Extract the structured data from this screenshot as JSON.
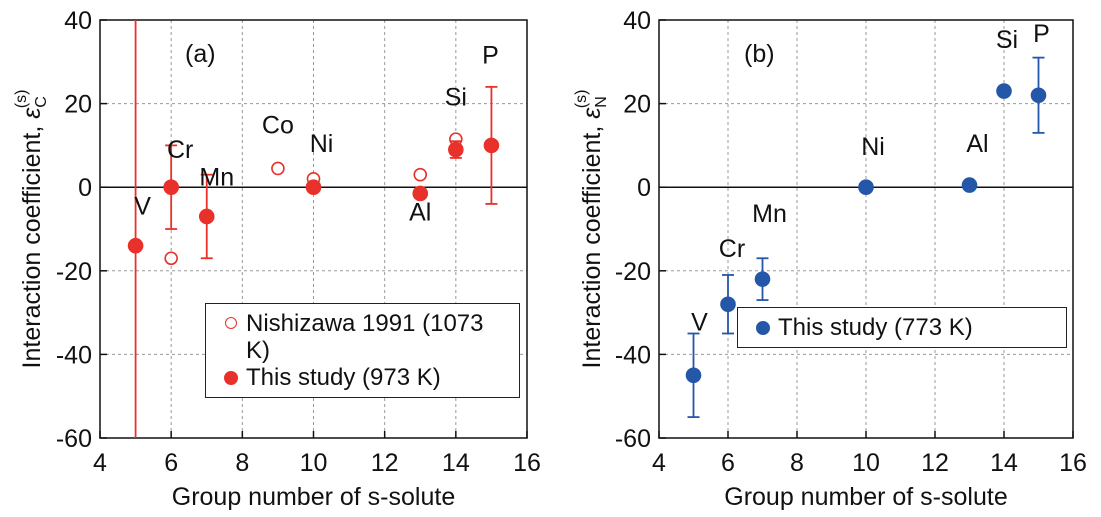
{
  "chart_data": [
    {
      "type": "scatter",
      "panel_label": "(a)",
      "xlabel": "Group number of s-solute",
      "ylabel": {
        "text": "Interaction coefficient, ",
        "symbol": "ε",
        "sub": "C",
        "sup": "(s)"
      },
      "xlim": [
        4,
        16
      ],
      "xticks": [
        4,
        6,
        8,
        10,
        12,
        14,
        16
      ],
      "ylim": [
        -60,
        40
      ],
      "yticks": [
        -60,
        -40,
        -20,
        0,
        20,
        40
      ],
      "grid": true,
      "legend": "lower right",
      "series": [
        {
          "name": "Nishizawa 1991 (1073 K)",
          "marker": "open",
          "color": "#e8312b",
          "x": [
            6,
            9,
            10,
            13,
            14
          ],
          "values": [
            -17,
            4.5,
            2,
            3,
            11.5
          ],
          "labels": [
            null,
            "Co",
            null,
            null,
            null
          ]
        },
        {
          "name": "This study (973 K)",
          "marker": "filled",
          "color": "#e8312b",
          "x": [
            5,
            6,
            7,
            10,
            13,
            14,
            15
          ],
          "values": [
            -14,
            0,
            -7,
            0,
            -1.5,
            9,
            10
          ],
          "errors": [
            60,
            10,
            10,
            null,
            1,
            2,
            14
          ],
          "labels": [
            "V",
            "Cr",
            "Mn",
            "Ni",
            "Al",
            "Si",
            "P"
          ]
        }
      ]
    },
    {
      "type": "scatter",
      "panel_label": "(b)",
      "xlabel": "Group number of s-solute",
      "ylabel": {
        "text": "Interaction coefficient, ",
        "symbol": "ε",
        "sub": "N",
        "sup": "(s)"
      },
      "xlim": [
        4,
        16
      ],
      "xticks": [
        4,
        6,
        8,
        10,
        12,
        14,
        16
      ],
      "ylim": [
        -60,
        40
      ],
      "yticks": [
        -60,
        -40,
        -20,
        0,
        20,
        40
      ],
      "grid": true,
      "legend": "lower right",
      "series": [
        {
          "name": "This study (773 K)",
          "marker": "filled",
          "color": "#2457a8",
          "x": [
            5,
            6,
            7,
            10,
            13,
            14,
            15
          ],
          "values": [
            -45,
            -28,
            -22,
            0,
            0.5,
            23,
            22
          ],
          "errors": [
            10,
            7,
            5,
            null,
            null,
            null,
            9
          ],
          "labels": [
            "V",
            "Cr",
            "Mn",
            "Ni",
            "Al",
            "Si",
            "P"
          ]
        }
      ]
    }
  ]
}
